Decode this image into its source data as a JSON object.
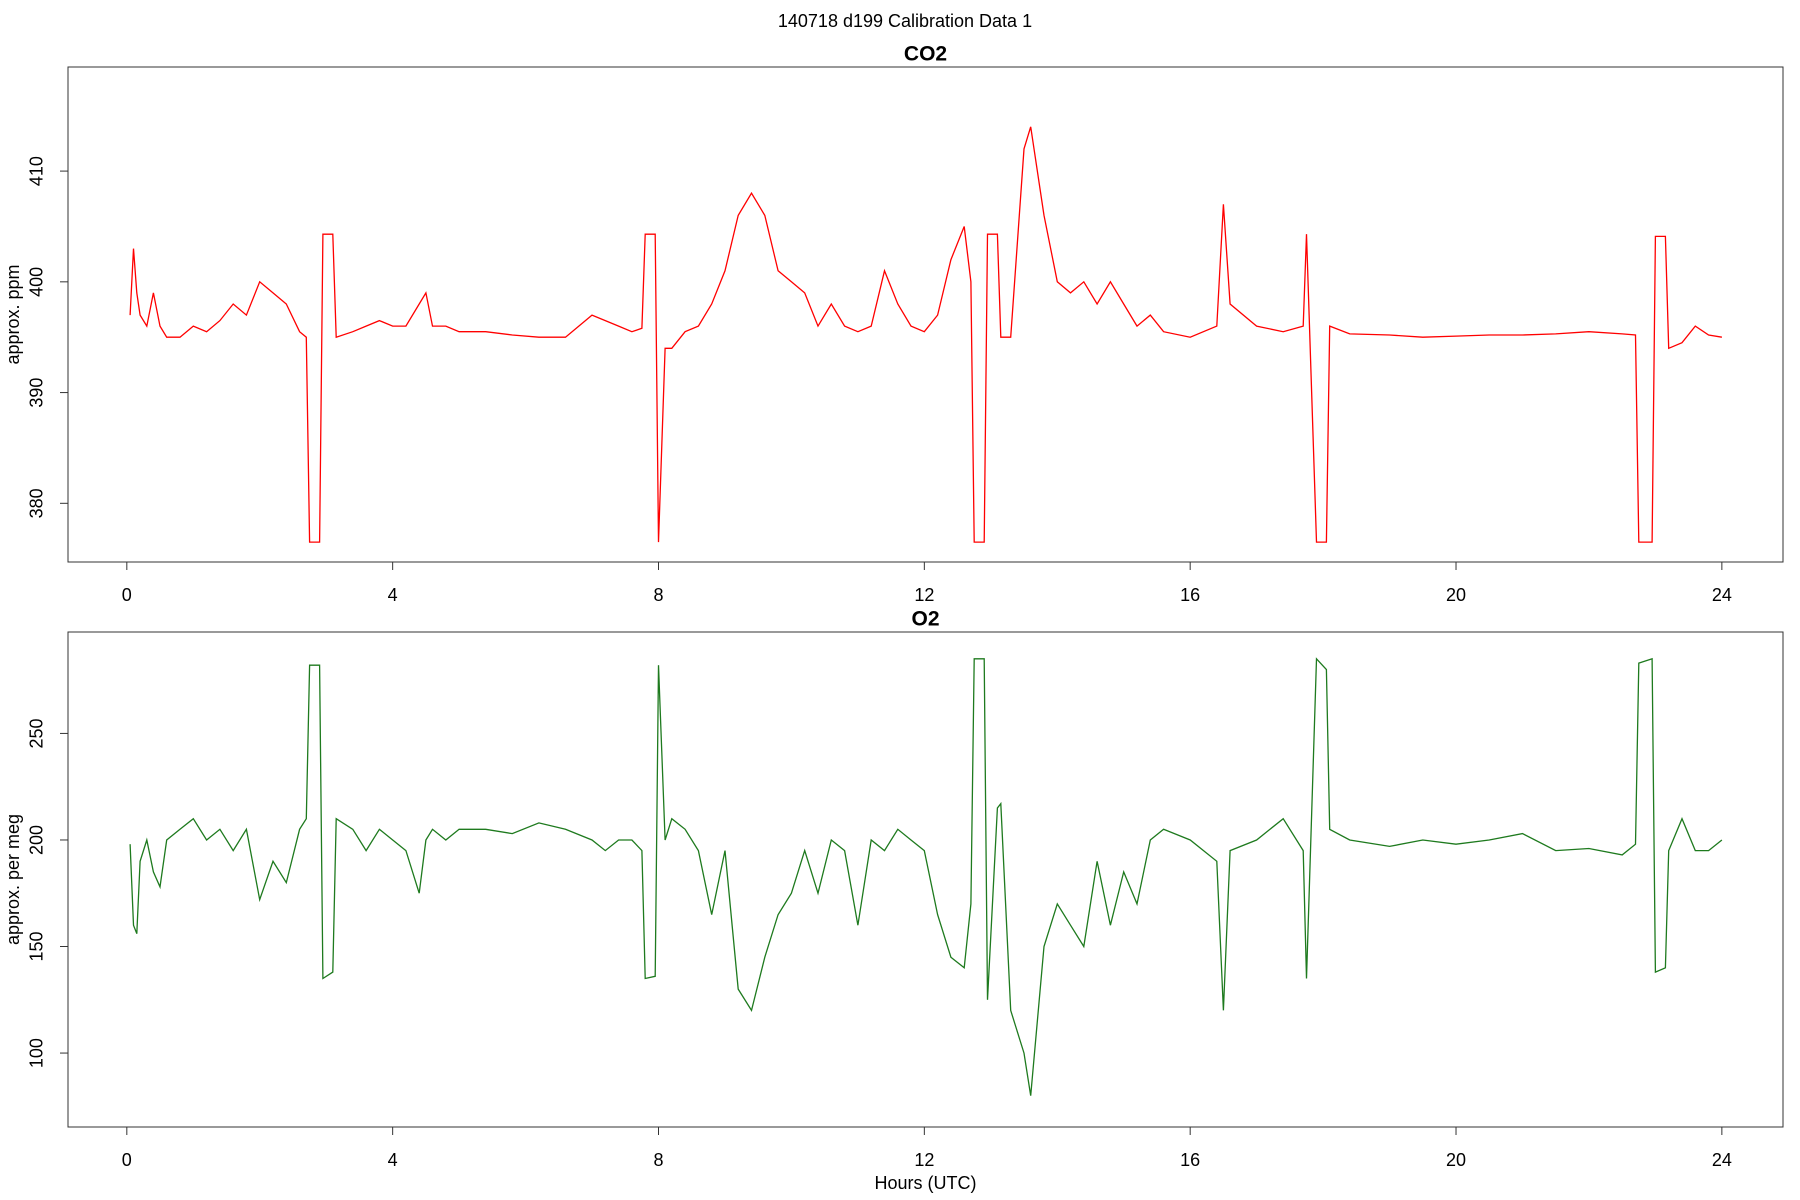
{
  "title": "140718   d199   Calibration Data 1",
  "chart_data": [
    {
      "type": "line",
      "title": "CO2",
      "ylabel": "approx. ppm",
      "xlim": [
        -0.885,
        24.92
      ],
      "xticks": [
        0,
        4,
        8,
        12,
        16,
        20,
        24
      ],
      "ylim": [
        374.7,
        419.4
      ],
      "yticks": [
        380,
        390,
        400,
        410
      ],
      "x": [
        0.05,
        0.1,
        0.15,
        0.2,
        0.3,
        0.4,
        0.5,
        0.6,
        0.8,
        1.0,
        1.2,
        1.4,
        1.6,
        1.8,
        2.0,
        2.2,
        2.4,
        2.6,
        2.7,
        2.75,
        2.9,
        2.95,
        3.1,
        3.15,
        3.4,
        3.6,
        3.8,
        4.0,
        4.2,
        4.4,
        4.5,
        4.6,
        4.8,
        5.0,
        5.4,
        5.8,
        6.2,
        6.6,
        7.0,
        7.2,
        7.4,
        7.6,
        7.75,
        7.8,
        7.95,
        8.0,
        8.1,
        8.2,
        8.4,
        8.6,
        8.8,
        9.0,
        9.2,
        9.4,
        9.6,
        9.8,
        10.0,
        10.2,
        10.4,
        10.6,
        10.8,
        11.0,
        11.2,
        11.4,
        11.6,
        11.8,
        12.0,
        12.2,
        12.4,
        12.6,
        12.7,
        12.75,
        12.9,
        12.95,
        13.1,
        13.15,
        13.3,
        13.5,
        13.6,
        13.8,
        14.0,
        14.2,
        14.4,
        14.6,
        14.8,
        15.0,
        15.2,
        15.4,
        15.6,
        16.0,
        16.4,
        16.5,
        16.6,
        17.0,
        17.4,
        17.7,
        17.75,
        17.9,
        18.05,
        18.1,
        18.4,
        19.0,
        19.5,
        20.0,
        20.5,
        21.0,
        21.5,
        22.0,
        22.5,
        22.7,
        22.75,
        22.95,
        23.0,
        23.15,
        23.2,
        23.4,
        23.6,
        23.8,
        24.0
      ],
      "series": [
        {
          "color": "#ff0000",
          "values": [
            397,
            403,
            399,
            397,
            396,
            399,
            396,
            395,
            395,
            396,
            395.5,
            396.5,
            398,
            397,
            400,
            399,
            398,
            395.5,
            395,
            376.5,
            376.5,
            404.3,
            404.3,
            395,
            395.5,
            396,
            396.5,
            396,
            396,
            398,
            399,
            396,
            396,
            395.5,
            395.5,
            395.2,
            395,
            395,
            397,
            396.5,
            396,
            395.5,
            395.8,
            404.3,
            404.3,
            376.5,
            394,
            394,
            395.5,
            396,
            398,
            401,
            406,
            408,
            406,
            401,
            400,
            399,
            396,
            398,
            396,
            395.5,
            396,
            401,
            398,
            396,
            395.5,
            397,
            402,
            405,
            400,
            376.5,
            376.5,
            404.3,
            404.3,
            395,
            395,
            412,
            414,
            406,
            400,
            399,
            400,
            398,
            400,
            398,
            396,
            397,
            395.5,
            395,
            396,
            407,
            398,
            396,
            395.5,
            396,
            404.3,
            376.5,
            376.5,
            396,
            395.3,
            395.2,
            395,
            395.1,
            395.2,
            395.2,
            395.3,
            395.5,
            395.3,
            395.2,
            376.5,
            376.5,
            404.1,
            404.1,
            394,
            394.5,
            396,
            395.2,
            395
          ]
        }
      ]
    },
    {
      "type": "line",
      "title": "O2",
      "ylabel": "approx. per meg",
      "xlabel": "Hours (UTC)",
      "xlim": [
        -0.885,
        24.92
      ],
      "xticks": [
        0,
        4,
        8,
        12,
        16,
        20,
        24
      ],
      "ylim": [
        65.3,
        297.6
      ],
      "yticks": [
        100,
        150,
        200,
        250
      ],
      "x": [
        0.05,
        0.1,
        0.15,
        0.2,
        0.3,
        0.4,
        0.5,
        0.6,
        0.8,
        1.0,
        1.2,
        1.4,
        1.6,
        1.8,
        2.0,
        2.2,
        2.4,
        2.6,
        2.7,
        2.75,
        2.9,
        2.95,
        3.1,
        3.15,
        3.4,
        3.6,
        3.8,
        4.0,
        4.2,
        4.4,
        4.5,
        4.6,
        4.8,
        5.0,
        5.4,
        5.8,
        6.2,
        6.6,
        7.0,
        7.2,
        7.4,
        7.6,
        7.75,
        7.8,
        7.95,
        8.0,
        8.1,
        8.2,
        8.4,
        8.6,
        8.8,
        9.0,
        9.2,
        9.4,
        9.6,
        9.8,
        10.0,
        10.2,
        10.4,
        10.6,
        10.8,
        11.0,
        11.2,
        11.4,
        11.6,
        11.8,
        12.0,
        12.2,
        12.4,
        12.6,
        12.7,
        12.75,
        12.9,
        12.95,
        13.1,
        13.15,
        13.3,
        13.5,
        13.6,
        13.8,
        14.0,
        14.2,
        14.4,
        14.6,
        14.8,
        15.0,
        15.2,
        15.4,
        15.6,
        16.0,
        16.4,
        16.5,
        16.6,
        17.0,
        17.4,
        17.7,
        17.75,
        17.9,
        18.05,
        18.1,
        18.4,
        19.0,
        19.5,
        20.0,
        20.5,
        21.0,
        21.5,
        22.0,
        22.5,
        22.7,
        22.75,
        22.95,
        23.0,
        23.15,
        23.2,
        23.4,
        23.6,
        23.8,
        24.0
      ],
      "series": [
        {
          "color": "#1e7a1e",
          "values": [
            198,
            160,
            156,
            190,
            200,
            185,
            178,
            200,
            205,
            210,
            200,
            205,
            195,
            205,
            172,
            190,
            180,
            205,
            210,
            282,
            282,
            135,
            138,
            210,
            205,
            195,
            205,
            200,
            195,
            175,
            200,
            205,
            200,
            205,
            205,
            203,
            208,
            205,
            200,
            195,
            200,
            200,
            195,
            135,
            136,
            282,
            200,
            210,
            205,
            195,
            165,
            195,
            130,
            120,
            145,
            165,
            175,
            195,
            175,
            200,
            195,
            160,
            200,
            195,
            205,
            200,
            195,
            165,
            145,
            140,
            170,
            285,
            285,
            125,
            215,
            217,
            120,
            100,
            80,
            150,
            170,
            160,
            150,
            190,
            160,
            185,
            170,
            200,
            205,
            200,
            190,
            120,
            195,
            200,
            210,
            195,
            135,
            285,
            280,
            205,
            200,
            197,
            200,
            198,
            200,
            203,
            195,
            196,
            193,
            198,
            283,
            285,
            138,
            140,
            195,
            210,
            195,
            195,
            200
          ]
        }
      ]
    }
  ]
}
